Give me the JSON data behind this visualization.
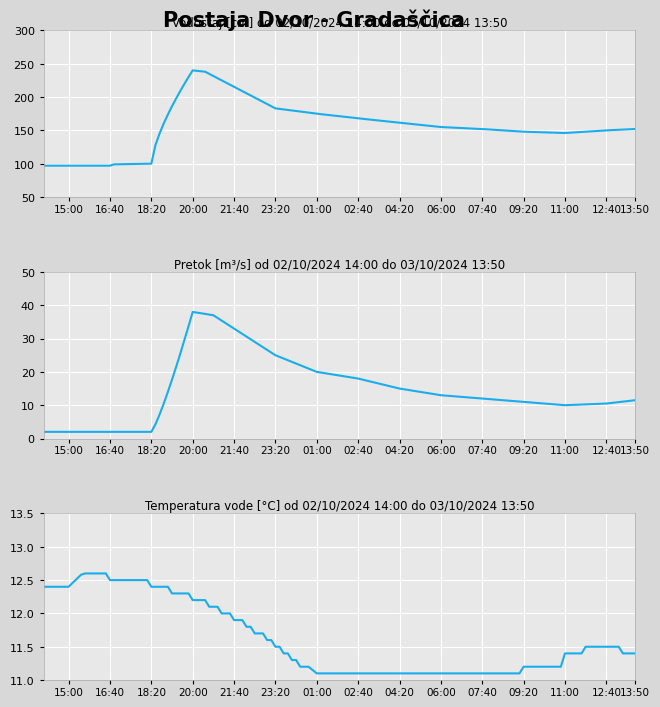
{
  "title": "Postaja Dvor - Gradaščica",
  "bg_color": "#d8d8d8",
  "plot_bg_color": "#e8e8e8",
  "line_color": "#1aadec",
  "line_width": 1.5,
  "chart1": {
    "title": "Vodostaj [cm] od 02/10/2024 14:00 do 03/10/2024 13:50",
    "ylim": [
      50,
      300
    ],
    "yticks": [
      50,
      100,
      150,
      200,
      250,
      300
    ]
  },
  "chart2": {
    "title": "Pretok [m³/s] od 02/10/2024 14:00 do 03/10/2024 13:50",
    "ylim": [
      0,
      50
    ],
    "yticks": [
      0,
      10,
      20,
      30,
      40,
      50
    ]
  },
  "chart3": {
    "title": "Temperatura vode [°C] od 02/10/2024 14:00 do 03/10/2024 13:50",
    "ylim": [
      11,
      13.5
    ],
    "yticks": [
      11,
      11.5,
      12,
      12.5,
      13,
      13.5
    ]
  },
  "x_tick_labels": [
    "15:00",
    "16:40",
    "18:20",
    "20:00",
    "21:40",
    "23:20",
    "01:00",
    "02:40",
    "04:20",
    "06:00",
    "07:40",
    "09:20",
    "11:00",
    "12:40",
    "13:50"
  ],
  "x_tick_minutes": [
    60,
    160,
    260,
    360,
    460,
    560,
    660,
    760,
    860,
    960,
    1060,
    1160,
    1260,
    1360,
    1430
  ]
}
